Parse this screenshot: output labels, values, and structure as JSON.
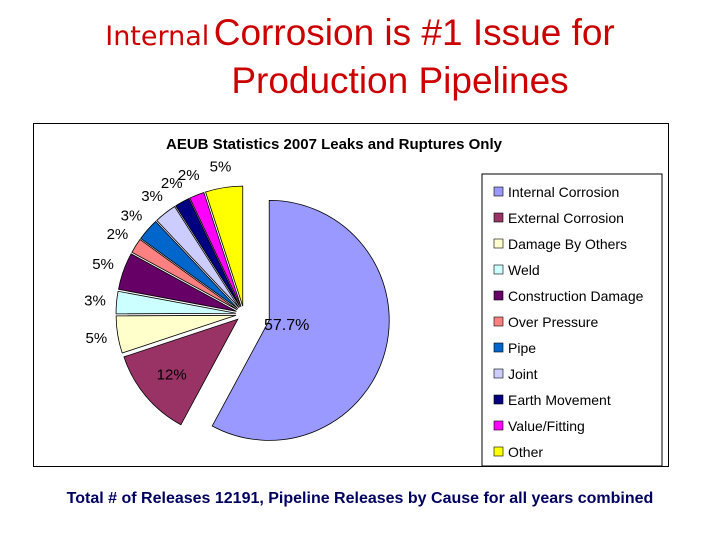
{
  "slide": {
    "title_part1": "Internal",
    "title_part2": "Corrosion is #1 Issue for",
    "title_line2": "Production Pipelines",
    "caption": "Total # of Releases 12191, Pipeline Releases by Cause for all years combined"
  },
  "chart_data": {
    "type": "pie",
    "title": "AEUB Statistics 2007 Leaks and Ruptures Only",
    "legend_position": "right",
    "categories": [
      "Internal Corrosion",
      "External Corrosion",
      "Damage By Others",
      "Weld",
      "Construction Damage",
      "Over Pressure",
      "Pipe",
      "Joint",
      "Earth Movement",
      "Value/Fitting",
      "Other"
    ],
    "values": [
      57.7,
      12,
      5,
      3,
      5,
      2,
      3,
      3,
      2,
      2,
      5
    ],
    "data_labels": [
      "57.7%",
      "12%",
      "5%",
      "3%",
      "5%",
      "2%",
      "3%",
      "3%",
      "2%",
      "2%",
      "5%"
    ],
    "colors": [
      "#9999ff",
      "#993366",
      "#ffffcc",
      "#ccffff",
      "#660066",
      "#ff8080",
      "#0066cc",
      "#ccccff",
      "#000080",
      "#ff00ff",
      "#ffff00"
    ]
  }
}
